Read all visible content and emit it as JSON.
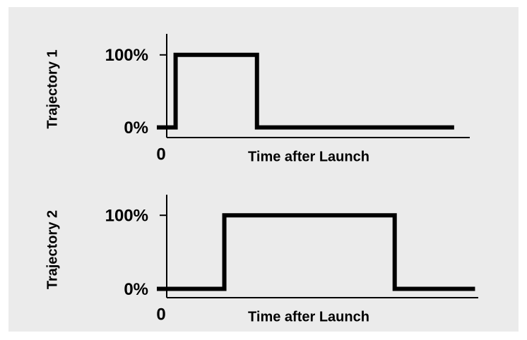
{
  "chart_data": [
    {
      "type": "line",
      "ylabel": "Trajectory 1",
      "xlabel": "Time after Launch",
      "x": [
        0,
        6,
        6,
        32,
        32,
        95
      ],
      "series": [
        {
          "color": "#000000",
          "values": [
            0,
            0,
            100,
            100,
            0,
            0
          ]
        }
      ],
      "xlim": [
        0,
        100
      ],
      "xticks": [
        0
      ],
      "ylim": [
        -14,
        129
      ],
      "yticks": [
        {
          "value": 0,
          "label": "0%"
        },
        {
          "value": 100,
          "label": "100%"
        }
      ]
    },
    {
      "type": "line",
      "ylabel": "Trajectory 2",
      "xlabel": "Time after Launch",
      "x": [
        0,
        21,
        21,
        74,
        74,
        99
      ],
      "series": [
        {
          "color": "#000000",
          "values": [
            0,
            0,
            100,
            100,
            0,
            0
          ]
        }
      ],
      "xlim": [
        0,
        100
      ],
      "xticks": [
        0
      ],
      "ylim": [
        -12,
        128
      ],
      "yticks": [
        {
          "value": 0,
          "label": "0%"
        },
        {
          "value": 100,
          "label": "100%"
        }
      ]
    }
  ]
}
